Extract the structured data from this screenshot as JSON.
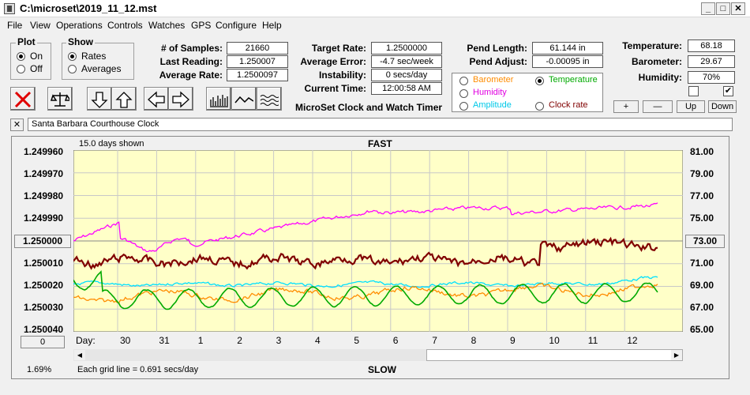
{
  "window": {
    "title": "C:\\microset\\2019_11_12.mst"
  },
  "menu": [
    "File",
    "View",
    "Operations",
    "Controls",
    "Watches",
    "GPS",
    "Configure",
    "Help"
  ],
  "plot_group": {
    "title": "Plot",
    "on": "On",
    "off": "Off",
    "selected": "On"
  },
  "show_group": {
    "title": "Show",
    "rates": "Rates",
    "averages": "Averages",
    "selected": "Rates"
  },
  "stats": {
    "samples_label": "# of Samples:",
    "samples": "21660",
    "last_reading_label": "Last Reading:",
    "last_reading": "1.250007",
    "average_rate_label": "Average Rate:",
    "average_rate": "1.2500097",
    "target_rate_label": "Target Rate:",
    "target_rate": "1.2500000",
    "average_error_label": "Average Error:",
    "average_error": "-4.7 sec/week",
    "instability_label": "Instability:",
    "instability": "0 secs/day",
    "current_time_label": "Current Time:",
    "current_time": "12:00:58 AM",
    "pend_length_label": "Pend Length:",
    "pend_length": "61.144 in",
    "pend_adjust_label": "Pend Adjust:",
    "pend_adjust": "-0.00095 in",
    "temperature_label": "Temperature:",
    "temperature": "68.18",
    "barometer_label": "Barometer:",
    "barometer": "29.67",
    "humidity_label": "Humidity:",
    "humidity": "70%"
  },
  "app_caption": "MicroSet Clock and Watch Timer",
  "sensor_options": {
    "barometer": "Barometer",
    "temperature": "Temperature",
    "humidity": "Humidity",
    "amplitude": "Amplitude",
    "clock_rate": "Clock rate",
    "selected": "Temperature"
  },
  "adjust_buttons": {
    "plus": "+",
    "minus": "—",
    "up": "Up",
    "down": "Down"
  },
  "clock_name": "Santa Barbara Courthouse Clock",
  "plot": {
    "days_shown": "15.0 days shown",
    "fast": "FAST",
    "slow": "SLOW",
    "left_ticks": [
      "1.249960",
      "1.249970",
      "1.249980",
      "1.249990",
      "1.250010",
      "1.250020",
      "1.250030",
      "1.250040"
    ],
    "center_left": "1.250000",
    "right_ticks": [
      "81.00",
      "79.00",
      "77.00",
      "75.00",
      "71.00",
      "69.00",
      "67.00",
      "65.00"
    ],
    "center_right": "73.00",
    "zero_button": "0",
    "day_label": "Day:",
    "days": [
      "30",
      "31",
      "1",
      "2",
      "3",
      "4",
      "5",
      "6",
      "7",
      "8",
      "9",
      "10",
      "11",
      "12"
    ],
    "percent": "1.69%",
    "grid_note": "Each grid line = 0.691 secs/day",
    "colors": {
      "bg": "#ffffc8",
      "grid": "#c8c8c8",
      "rate": "#800000",
      "humidity": "#ff00ff",
      "amplitude": "#00e0ff",
      "barometer": "#ff8c00",
      "temperature": "#00aa00"
    }
  }
}
